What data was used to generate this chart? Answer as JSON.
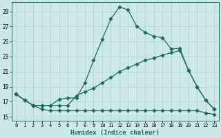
{
  "xlabel": "Humidex (Indice chaleur)",
  "background_color": "#cde8e8",
  "grid_color": "#b0d0d0",
  "line_color": "#1a6b5a",
  "xlim": [
    -0.5,
    23.5
  ],
  "ylim": [
    14.5,
    30.2
  ],
  "yticks": [
    15,
    17,
    19,
    21,
    23,
    25,
    27,
    29
  ],
  "xticks": [
    0,
    1,
    2,
    3,
    4,
    5,
    6,
    7,
    8,
    9,
    10,
    11,
    12,
    13,
    14,
    15,
    16,
    17,
    18,
    19,
    20,
    21,
    22,
    23
  ],
  "line1_x": [
    0,
    1,
    2,
    3,
    4,
    5,
    6,
    7,
    8,
    9,
    10,
    11,
    12,
    13,
    14,
    15,
    16,
    17,
    18,
    19,
    20,
    21,
    22,
    23
  ],
  "line1_y": [
    18.0,
    17.2,
    16.5,
    16.5,
    16.5,
    17.3,
    17.5,
    17.5,
    19.5,
    22.5,
    25.3,
    28.0,
    29.6,
    29.2,
    27.0,
    26.2,
    25.7,
    25.5,
    24.0,
    24.1,
    21.2,
    19.0,
    17.2,
    16.0
  ],
  "line2_x": [
    0,
    1,
    2,
    3,
    4,
    5,
    6,
    7,
    8,
    9,
    10,
    11,
    12,
    13,
    14,
    15,
    16,
    17,
    18,
    19,
    20,
    21,
    22,
    23
  ],
  "line2_y": [
    18.0,
    17.2,
    16.5,
    16.5,
    16.5,
    16.5,
    16.5,
    17.8,
    18.3,
    18.8,
    19.5,
    20.2,
    21.0,
    21.5,
    22.0,
    22.5,
    22.8,
    23.2,
    23.5,
    23.8,
    21.2,
    19.0,
    17.2,
    16.0
  ],
  "line3_x": [
    0,
    1,
    2,
    3,
    4,
    5,
    6,
    7,
    8,
    9,
    10,
    11,
    12,
    13,
    14,
    15,
    16,
    17,
    18,
    19,
    20,
    21,
    22,
    23
  ],
  "line3_y": [
    18.0,
    17.2,
    16.5,
    16.0,
    15.8,
    15.8,
    15.8,
    15.8,
    15.8,
    15.8,
    15.8,
    15.8,
    15.8,
    15.8,
    15.8,
    15.8,
    15.8,
    15.8,
    15.8,
    15.8,
    15.8,
    15.8,
    15.5,
    15.3
  ]
}
